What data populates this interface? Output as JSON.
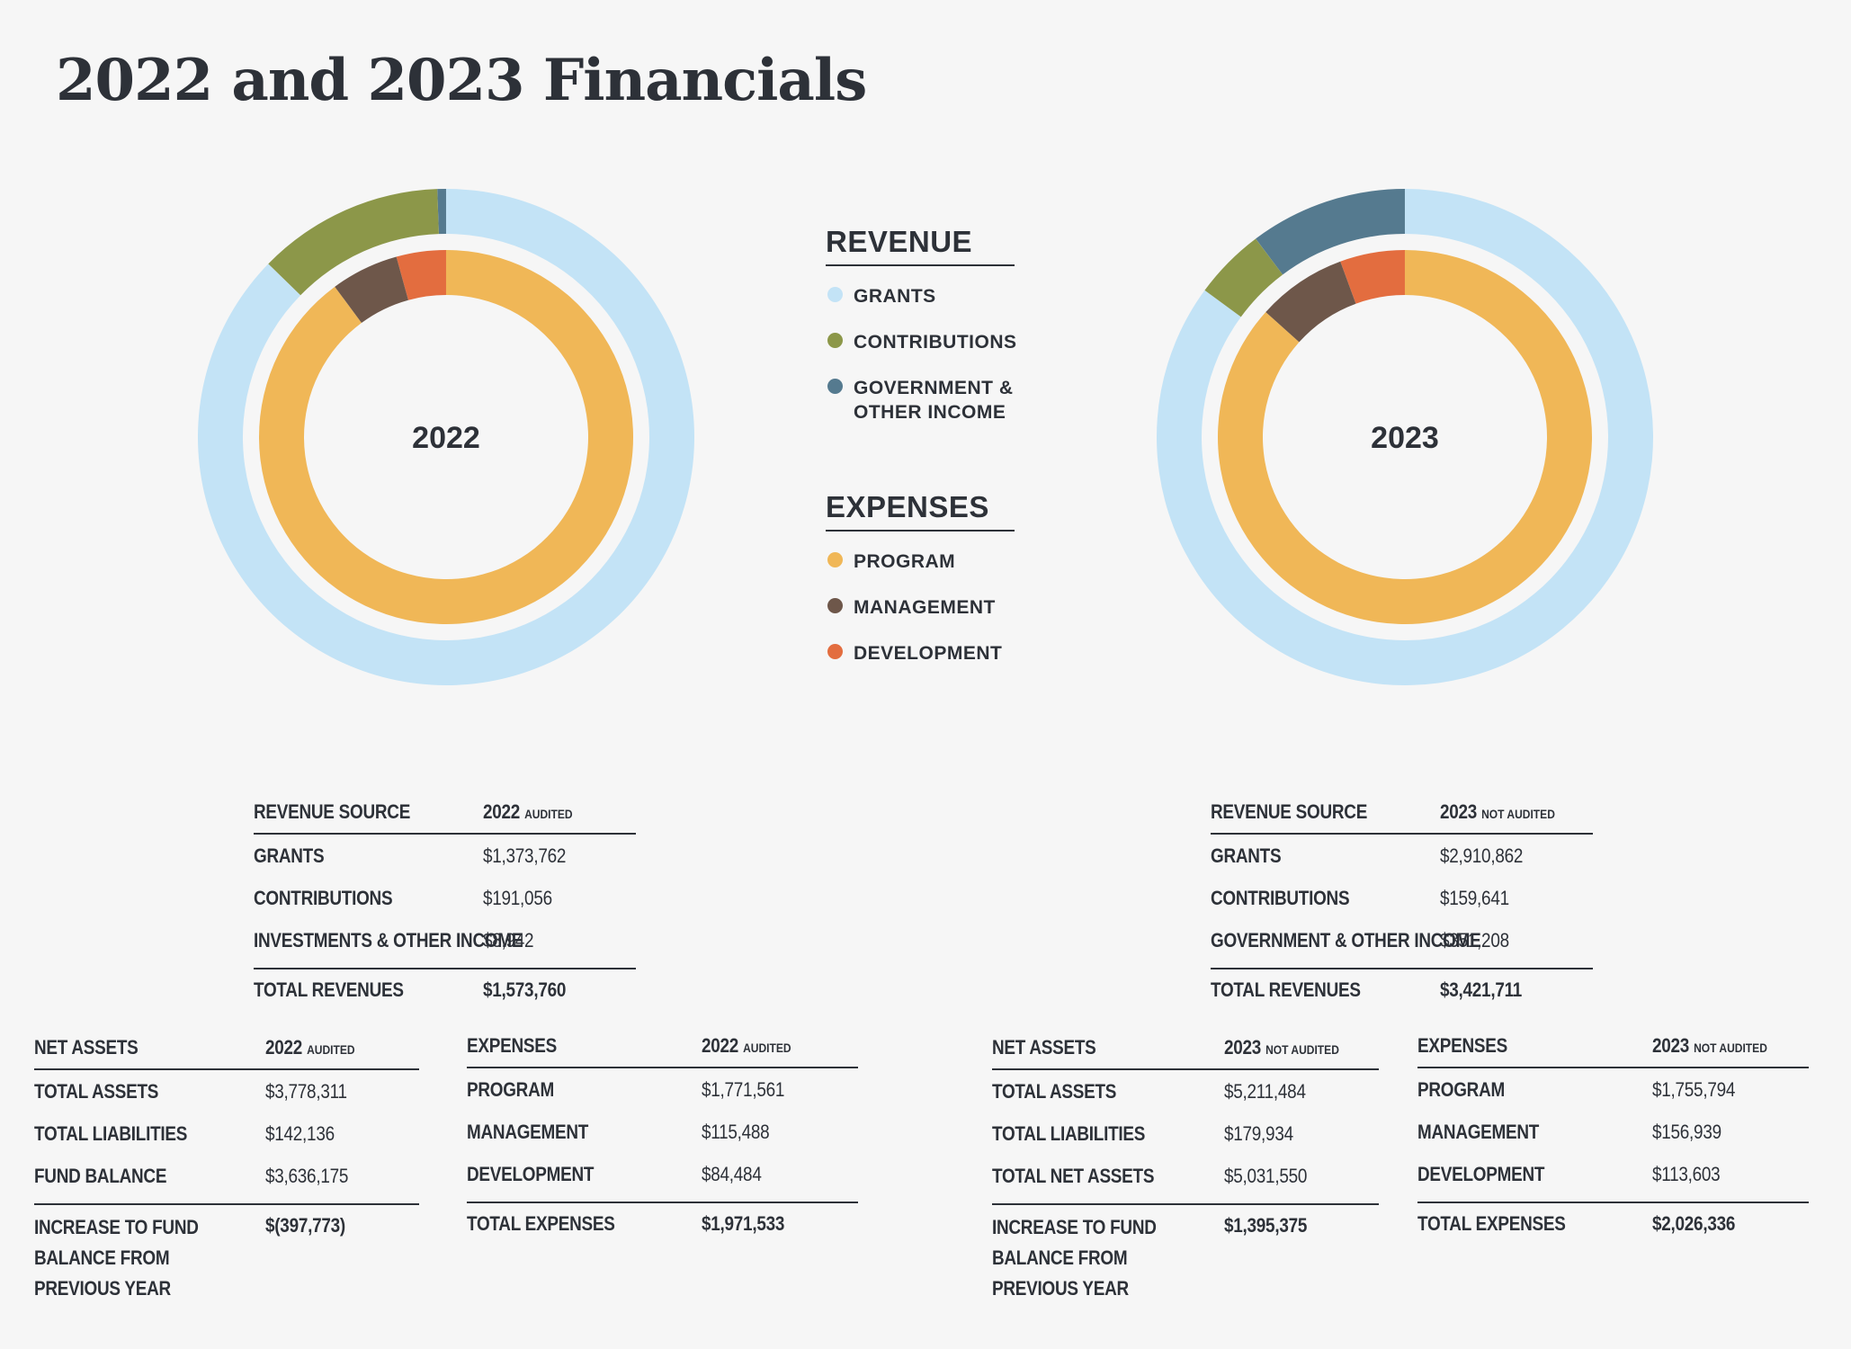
{
  "title": "2022 and 2023 Financials",
  "colors": {
    "grants": "#c3e3f6",
    "contributions": "#8c9749",
    "government": "#557a8f",
    "program": "#f0b757",
    "management": "#6e574a",
    "development": "#e36d3f"
  },
  "legend": {
    "revenue_title": "REVENUE",
    "expenses_title": "EXPENSES",
    "revenue_items": [
      {
        "label": "GRANTS",
        "color": "#c3e3f6"
      },
      {
        "label": "CONTRIBUTIONS",
        "color": "#8c9749"
      },
      {
        "label": "GOVERNMENT & OTHER INCOME",
        "color": "#557a8f"
      }
    ],
    "expense_items": [
      {
        "label": "PROGRAM",
        "color": "#f0b757"
      },
      {
        "label": "MANAGEMENT",
        "color": "#6e574a"
      },
      {
        "label": "DEVELOPMENT",
        "color": "#e36d3f"
      }
    ]
  },
  "chart_data": [
    {
      "type": "pie",
      "title": "2022",
      "rings": [
        {
          "name": "Revenue",
          "categories": [
            "GRANTS",
            "CONTRIBUTIONS",
            "INVESTMENTS & OTHER INCOME"
          ],
          "values": [
            1373762,
            191056,
            8942
          ],
          "colors": [
            "#c3e3f6",
            "#8c9749",
            "#557a8f"
          ]
        },
        {
          "name": "Expenses",
          "categories": [
            "PROGRAM",
            "MANAGEMENT",
            "DEVELOPMENT"
          ],
          "values": [
            1771561,
            115488,
            84484
          ],
          "colors": [
            "#f0b757",
            "#6e574a",
            "#e36d3f"
          ]
        }
      ]
    },
    {
      "type": "pie",
      "title": "2023",
      "rings": [
        {
          "name": "Revenue",
          "categories": [
            "GRANTS",
            "CONTRIBUTIONS",
            "GOVERNMENT & OTHER INCOME"
          ],
          "values": [
            2910862,
            159641,
            351208
          ],
          "colors": [
            "#c3e3f6",
            "#8c9749",
            "#557a8f"
          ]
        },
        {
          "name": "Expenses",
          "categories": [
            "PROGRAM",
            "MANAGEMENT",
            "DEVELOPMENT"
          ],
          "values": [
            1755794,
            156939,
            113603
          ],
          "colors": [
            "#f0b757",
            "#6e574a",
            "#e36d3f"
          ]
        }
      ]
    }
  ],
  "tables": {
    "revenue_2022": {
      "header": [
        "REVENUE SOURCE",
        "2022",
        "AUDITED"
      ],
      "rows": [
        [
          "GRANTS",
          "$1,373,762"
        ],
        [
          "CONTRIBUTIONS",
          "$191,056"
        ],
        [
          "INVESTMENTS & OTHER INCOME",
          "$8,942"
        ]
      ],
      "total": [
        "TOTAL REVENUES",
        "$1,573,760"
      ]
    },
    "revenue_2023": {
      "header": [
        "REVENUE SOURCE",
        "2023",
        "NOT AUDITED"
      ],
      "rows": [
        [
          "GRANTS",
          "$2,910,862"
        ],
        [
          "CONTRIBUTIONS",
          "$159,641"
        ],
        [
          "GOVERNMENT & OTHER INCOME",
          "$351,208"
        ]
      ],
      "total": [
        "TOTAL REVENUES",
        "$3,421,711"
      ]
    },
    "assets_2022": {
      "header": [
        "NET ASSETS",
        "2022",
        "AUDITED"
      ],
      "rows": [
        [
          "TOTAL ASSETS",
          "$3,778,311"
        ],
        [
          "TOTAL LIABILITIES",
          "$142,136"
        ],
        [
          "FUND BALANCE",
          "$3,636,175"
        ]
      ],
      "total": [
        "INCREASE TO FUND BALANCE FROM PREVIOUS YEAR",
        "$(397,773)"
      ]
    },
    "expenses_2022": {
      "header": [
        "EXPENSES",
        "2022",
        "AUDITED"
      ],
      "rows": [
        [
          "PROGRAM",
          "$1,771,561"
        ],
        [
          "MANAGEMENT",
          "$115,488"
        ],
        [
          "DEVELOPMENT",
          "$84,484"
        ]
      ],
      "total": [
        "TOTAL EXPENSES",
        "$1,971,533"
      ]
    },
    "assets_2023": {
      "header": [
        "NET ASSETS",
        "2023",
        "NOT AUDITED"
      ],
      "rows": [
        [
          "TOTAL ASSETS",
          "$5,211,484"
        ],
        [
          "TOTAL LIABILITIES",
          "$179,934"
        ],
        [
          "TOTAL NET ASSETS",
          "$5,031,550"
        ]
      ],
      "total": [
        "INCREASE TO FUND BALANCE FROM PREVIOUS YEAR",
        "$1,395,375"
      ]
    },
    "expenses_2023": {
      "header": [
        "EXPENSES",
        "2023",
        "NOT AUDITED"
      ],
      "rows": [
        [
          "PROGRAM",
          "$1,755,794"
        ],
        [
          "MANAGEMENT",
          "$156,939"
        ],
        [
          "DEVELOPMENT",
          "$113,603"
        ]
      ],
      "total": [
        "TOTAL EXPENSES",
        "$2,026,336"
      ]
    }
  }
}
